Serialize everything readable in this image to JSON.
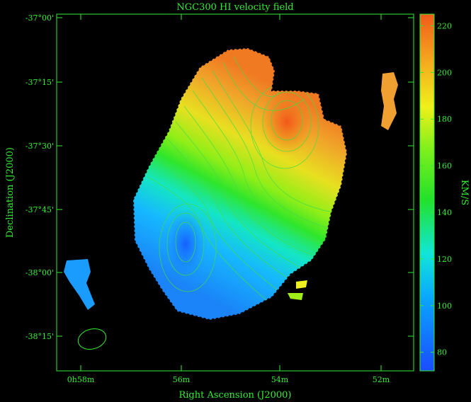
{
  "chart_data": {
    "type": "heatmap",
    "title": "NGC300   HI velocity field",
    "xlabel": "Right Ascension (J2000)",
    "ylabel": "Declination (J2000)",
    "colorbar_label": "KM/S",
    "x_ticks": [
      "0h58m",
      "56m",
      "54m",
      "52m"
    ],
    "y_ticks": [
      "-37°00'",
      "-37°15'",
      "-37°30'",
      "-37°45'",
      "-38°00'",
      "-38°15'"
    ],
    "colorbar_ticks": [
      80,
      100,
      120,
      140,
      160,
      180,
      200,
      220
    ],
    "colorbar_range": [
      72,
      225
    ],
    "velocity_field": {
      "approaching_min_kms": 85,
      "receding_max_kms": 215,
      "contours": "isovelocity lines"
    },
    "beam": "ellipse, lower-left",
    "colors": {
      "axis": "#33ee33",
      "background": "#000000"
    }
  }
}
